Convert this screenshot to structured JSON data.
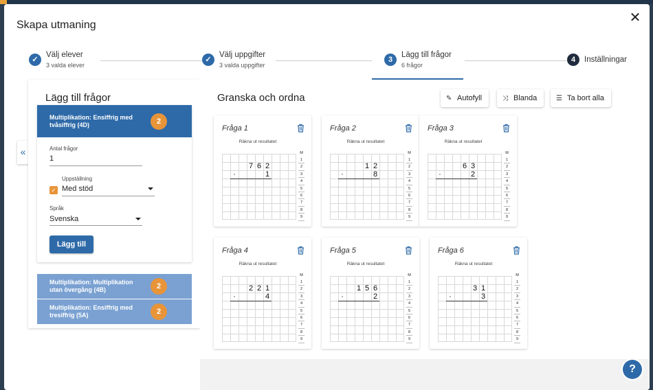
{
  "modal": {
    "title": "Skapa utmaning"
  },
  "stepper": {
    "steps": [
      {
        "label": "Välj elever",
        "sub": "3 valda elever",
        "state": "done"
      },
      {
        "label": "Välj uppgifter",
        "sub": "3 valda uppgifter",
        "state": "done"
      },
      {
        "label": "Lägg till frågor",
        "sub": "6 frågor",
        "state": "active",
        "number": "3"
      },
      {
        "label": "Inställningar",
        "sub": "",
        "state": "todo",
        "number": "4"
      }
    ]
  },
  "left": {
    "title": "Lägg till frågor",
    "active_card": {
      "title": "Multiplikation: Ensiffrig med tvåsiffrig (4D)",
      "badge": "2",
      "count_label": "Antal frågor",
      "count_value": "1",
      "layout_label": "Uppställning",
      "layout_value": "Med stöd",
      "layout_checked": true,
      "lang_label": "Språk",
      "lang_value": "Svenska",
      "add_button": "Lägg till"
    },
    "other_cards": [
      {
        "title": "Multiplikation: Multiplikation utan övergång (4B)",
        "badge": "2"
      },
      {
        "title": "Multiplikation: Ensiffrig med tresiffrig (5A)",
        "badge": "2"
      }
    ]
  },
  "right": {
    "title": "Granska och ordna",
    "buttons": {
      "autofill": "Autofyll",
      "shuffle": "Blanda",
      "remove_all": "Ta bort alla"
    },
    "questions": [
      {
        "title": "Fråga 1",
        "instruction": "Räkna ut resultatet",
        "top": [
          "7",
          "6",
          "2"
        ],
        "op": "·",
        "bottom": "1"
      },
      {
        "title": "Fråga 2",
        "instruction": "Räkna ut resultatet",
        "top": [
          "",
          "1",
          "2"
        ],
        "op": "·",
        "bottom": "8"
      },
      {
        "title": "Fråga 3",
        "instruction": "Räkna ut resultatet",
        "top": [
          "",
          "6",
          "3"
        ],
        "op": "·",
        "bottom": "2"
      },
      {
        "title": "Fråga 4",
        "instruction": "Räkna ut resultatet",
        "top": [
          "2",
          "2",
          "1"
        ],
        "op": "·",
        "bottom": "4"
      },
      {
        "title": "Fråga 5",
        "instruction": "Räkna ut resultatet",
        "top": [
          "1",
          "5",
          "6"
        ],
        "op": "·",
        "bottom": "2"
      },
      {
        "title": "Fråga 6",
        "instruction": "Räkna ut resultatet",
        "top": [
          "",
          "3",
          "1"
        ],
        "op": "·",
        "bottom": "3"
      }
    ],
    "margin_header": "M",
    "margin_rows": [
      "1",
      "2",
      "3",
      "4",
      "5",
      "6",
      "7",
      "8",
      "9"
    ]
  },
  "colors": {
    "primary": "#2e6aa8",
    "badge": "#e89439",
    "light_card": "#7aa1d2"
  },
  "help": {
    "icon": "?"
  }
}
